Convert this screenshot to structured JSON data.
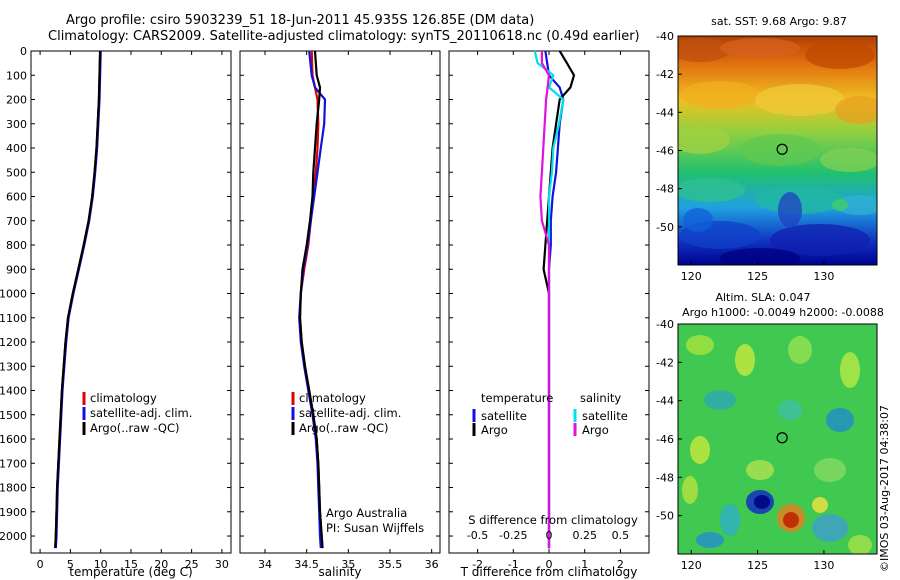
{
  "header": {
    "line1": "Argo profile: csiro 5903239_51 18-Jun-2011 45.935S 126.85E (DM data)",
    "line2": "Climatology: CARS2009. Satellite-adjusted climatology: synTS_20110618.nc (0.49d earlier)"
  },
  "colors": {
    "climatology": "#e00000",
    "satellite": "#1010e0",
    "argo": "#000000",
    "sal_satellite": "#00e0e8",
    "sal_argo": "#e010e0"
  },
  "depth_ticks": [
    "0",
    "100",
    "200",
    "300",
    "400",
    "500",
    "600",
    "700",
    "800",
    "900",
    "1000",
    "1100",
    "1200",
    "1300",
    "1400",
    "1500",
    "1600",
    "1700",
    "1800",
    "1900",
    "2000"
  ],
  "chart_data": [
    {
      "type": "line",
      "xlabel": "temperature (deg C)",
      "ylabel": "depth",
      "xlim": [
        -1.5,
        31.5
      ],
      "ylim": [
        2070,
        0
      ],
      "xticks": [
        "0",
        "5",
        "10",
        "15",
        "20",
        "25",
        "30"
      ],
      "xtick_values": [
        0,
        5,
        10,
        15,
        20,
        25,
        30
      ],
      "legend": {
        "position": "bottom-right",
        "entries": [
          "climatology",
          "satellite-adj. clim.",
          "Argo(..raw -QC)"
        ]
      },
      "depth": [
        0,
        100,
        200,
        300,
        400,
        500,
        600,
        700,
        800,
        900,
        1000,
        1100,
        1200,
        1300,
        1400,
        1500,
        1600,
        1700,
        1800,
        1900,
        2000,
        2050
      ],
      "series": [
        {
          "name": "climatology",
          "values": [
            9.9,
            9.8,
            9.7,
            9.5,
            9.3,
            9.0,
            8.6,
            8.0,
            7.2,
            6.3,
            5.4,
            4.6,
            4.2,
            3.9,
            3.6,
            3.4,
            3.2,
            3.0,
            2.8,
            2.7,
            2.6,
            2.5
          ]
        },
        {
          "name": "satellite-adj. clim.",
          "values": [
            10.0,
            9.9,
            9.8,
            9.6,
            9.4,
            9.1,
            8.7,
            8.1,
            7.3,
            6.4,
            5.5,
            4.7,
            4.3,
            4.0,
            3.7,
            3.5,
            3.3,
            3.1,
            2.9,
            2.8,
            2.7,
            2.6
          ]
        },
        {
          "name": "Argo(..raw -QC)",
          "values": [
            9.9,
            9.8,
            9.7,
            9.5,
            9.3,
            9.0,
            8.6,
            8.0,
            7.2,
            6.3,
            5.4,
            4.6,
            4.2,
            3.9,
            3.6,
            3.4,
            3.2,
            3.0,
            2.8,
            2.7,
            2.6,
            2.5
          ]
        }
      ]
    },
    {
      "type": "line",
      "xlabel": "salinity",
      "ylabel": "depth",
      "xlim": [
        33.7,
        36.1
      ],
      "ylim": [
        2070,
        0
      ],
      "xticks": [
        "34",
        "34.5",
        "35",
        "35.5",
        "36"
      ],
      "xtick_values": [
        34,
        34.5,
        35,
        35.5,
        36
      ],
      "legend": {
        "position": "bottom-right",
        "entries": [
          "climatology",
          "satellite-adj. clim.",
          "Argo(..raw -QC)"
        ]
      },
      "annotation": [
        "Argo Australia",
        "PI: Susan Wijffels"
      ],
      "depth": [
        0,
        100,
        150,
        200,
        300,
        400,
        500,
        600,
        700,
        800,
        900,
        1000,
        1100,
        1200,
        1300,
        1400,
        1500,
        1600,
        1700,
        1800,
        1900,
        2000,
        2050
      ],
      "series": [
        {
          "name": "climatology",
          "values": [
            34.56,
            34.57,
            34.6,
            34.63,
            34.64,
            34.63,
            34.61,
            34.58,
            34.55,
            34.52,
            34.47,
            34.43,
            34.42,
            34.44,
            34.48,
            34.53,
            34.58,
            34.62,
            34.64,
            34.65,
            34.66,
            34.68,
            34.69
          ]
        },
        {
          "name": "satellite-adj. clim.",
          "values": [
            34.53,
            34.56,
            34.6,
            34.72,
            34.71,
            34.67,
            34.63,
            34.59,
            34.55,
            34.51,
            34.46,
            34.43,
            34.41,
            34.43,
            34.47,
            34.52,
            34.57,
            34.61,
            34.63,
            34.64,
            34.65,
            34.66,
            34.67
          ]
        },
        {
          "name": "Argo(..raw -QC)",
          "values": [
            34.6,
            34.62,
            34.66,
            34.65,
            34.62,
            34.6,
            34.58,
            34.57,
            34.54,
            34.5,
            34.45,
            34.43,
            34.42,
            34.44,
            34.48,
            34.53,
            34.58,
            34.62,
            34.64,
            34.65,
            34.66,
            34.68,
            34.69
          ]
        }
      ]
    },
    {
      "type": "line",
      "xlabel": "T difference from climatology",
      "top_xlabel": "S difference from climatology",
      "ylabel": "depth",
      "xlim": [
        -2.8,
        2.8
      ],
      "ylim": [
        2070,
        0
      ],
      "xticks": [
        "-2",
        "-1",
        "0",
        "1",
        "2"
      ],
      "xtick_values": [
        -2,
        -1,
        0,
        1,
        2
      ],
      "top_xticks": [
        "-0.5",
        "-0.25",
        "0",
        "0.25",
        "0.5"
      ],
      "top_xtick_values": [
        -0.5,
        -0.25,
        0,
        0.25,
        0.5
      ],
      "legend": {
        "position": "bottom",
        "temperature_title": "temperature",
        "salinity_title": "salinity",
        "entries": [
          "satellite",
          "Argo",
          "satellite",
          "Argo"
        ]
      },
      "depth": [
        0,
        50,
        100,
        150,
        200,
        300,
        400,
        500,
        600,
        700,
        800,
        900,
        1000,
        1200,
        1400,
        1600,
        1800,
        2000,
        2050
      ],
      "series": [
        {
          "name": "T satellite",
          "values": [
            -0.1,
            -0.05,
            0.0,
            0.3,
            0.4,
            0.3,
            0.25,
            0.2,
            0.1,
            0.05,
            0.05,
            0.0,
            0.0,
            0.0,
            0.0,
            0.0,
            0.0,
            0.0,
            0.0
          ]
        },
        {
          "name": "T Argo",
          "values": [
            0.3,
            0.5,
            0.7,
            0.6,
            0.3,
            0.2,
            0.1,
            0.05,
            0.0,
            -0.05,
            -0.1,
            -0.15,
            0.0,
            0.0,
            0.0,
            0.0,
            0.0,
            0.0,
            0.0
          ]
        },
        {
          "name": "S satellite",
          "values": [
            -0.1,
            -0.08,
            0.03,
            0.0,
            0.1,
            0.07,
            0.03,
            0.02,
            0.0,
            0.0,
            0.0,
            0.0,
            0.0,
            0.0,
            0.0,
            0.0,
            0.0,
            0.0,
            0.0
          ]
        },
        {
          "name": "S Argo",
          "values": [
            -0.05,
            -0.05,
            0.0,
            -0.01,
            -0.02,
            -0.03,
            -0.04,
            -0.05,
            -0.06,
            -0.05,
            0.0,
            0.0,
            0.0,
            0.0,
            0.0,
            0.0,
            0.0,
            0.0,
            0.0
          ]
        }
      ]
    },
    {
      "type": "heatmap",
      "title": "sat. SST: 9.68  Argo: 9.87",
      "xlim": [
        119,
        134
      ],
      "ylim": [
        -52,
        -40
      ],
      "xticks": [
        "120",
        "125",
        "130"
      ],
      "xtick_values": [
        120,
        125,
        130
      ],
      "yticks": [
        "-40",
        "-42",
        "-44",
        "-46",
        "-48",
        "-50"
      ],
      "ytick_values": [
        -40,
        -42,
        -44,
        -46,
        -48,
        -50
      ],
      "marker": {
        "lon": 126.85,
        "lat": -45.935
      }
    },
    {
      "type": "heatmap",
      "title": "Altim. SLA: 0.047",
      "subtitle": "Argo h1000: -0.0049  h2000: -0.0088",
      "xlim": [
        119,
        134
      ],
      "ylim": [
        -52,
        -40
      ],
      "xticks": [
        "120",
        "125",
        "130"
      ],
      "xtick_values": [
        120,
        125,
        130
      ],
      "yticks": [
        "-40",
        "-42",
        "-44",
        "-46",
        "-48",
        "-50"
      ],
      "ytick_values": [
        -40,
        -42,
        -44,
        -46,
        -48,
        -50
      ],
      "marker": {
        "lon": 126.85,
        "lat": -45.935
      }
    }
  ],
  "stamp": "©IMOS 03-Aug-2017 04:38:07"
}
